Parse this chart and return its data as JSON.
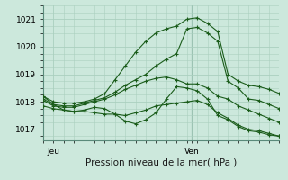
{
  "background_color": "#cce8dc",
  "grid_color": "#aacfbf",
  "line_color": "#1a5c1a",
  "marker_color": "#1a5c1a",
  "xlabel": "Pression niveau de la mer( hPa )",
  "xlabel_fontsize": 7.5,
  "yticks": [
    1017,
    1018,
    1019,
    1020,
    1021
  ],
  "ylim": [
    1016.6,
    1021.5
  ],
  "xlim": [
    0,
    23
  ],
  "vline_x": 14.5,
  "vline_color": "#5a8a7a",
  "tick_labels_fontsize": 6.5,
  "xtick_positions": [
    1.0,
    14.5
  ],
  "xtick_labels": [
    "Jeu",
    "Ven"
  ],
  "series": [
    [
      1018.2,
      1018.0,
      1017.95,
      1017.95,
      1018.0,
      1018.1,
      1018.3,
      1018.8,
      1019.3,
      1019.8,
      1020.2,
      1020.5,
      1020.65,
      1020.75,
      1021.0,
      1021.05,
      1020.85,
      1020.55,
      1019.0,
      1018.75,
      1018.6,
      1018.55,
      1018.45,
      1018.3
    ],
    [
      1018.1,
      1017.9,
      1017.85,
      1017.85,
      1017.95,
      1018.05,
      1018.15,
      1018.35,
      1018.6,
      1018.8,
      1019.0,
      1019.3,
      1019.55,
      1019.75,
      1020.65,
      1020.7,
      1020.5,
      1020.2,
      1018.75,
      1018.5,
      1018.1,
      1018.05,
      1017.9,
      1017.75
    ],
    [
      1018.05,
      1017.85,
      1017.8,
      1017.8,
      1017.9,
      1018.0,
      1018.1,
      1018.25,
      1018.45,
      1018.6,
      1018.75,
      1018.85,
      1018.9,
      1018.8,
      1018.65,
      1018.65,
      1018.5,
      1018.2,
      1018.1,
      1017.85,
      1017.7,
      1017.55,
      1017.4,
      1017.25
    ],
    [
      1017.85,
      1017.75,
      1017.7,
      1017.65,
      1017.65,
      1017.6,
      1017.55,
      1017.55,
      1017.5,
      1017.6,
      1017.7,
      1017.85,
      1017.9,
      1017.95,
      1018.0,
      1018.05,
      1017.9,
      1017.6,
      1017.4,
      1017.15,
      1017.0,
      1016.95,
      1016.85,
      1016.75
    ],
    [
      1018.2,
      1017.9,
      1017.7,
      1017.65,
      1017.7,
      1017.8,
      1017.75,
      1017.55,
      1017.3,
      1017.2,
      1017.35,
      1017.6,
      1018.1,
      1018.55,
      1018.5,
      1018.4,
      1018.1,
      1017.5,
      1017.35,
      1017.1,
      1016.95,
      1016.9,
      1016.8,
      1016.75
    ]
  ]
}
